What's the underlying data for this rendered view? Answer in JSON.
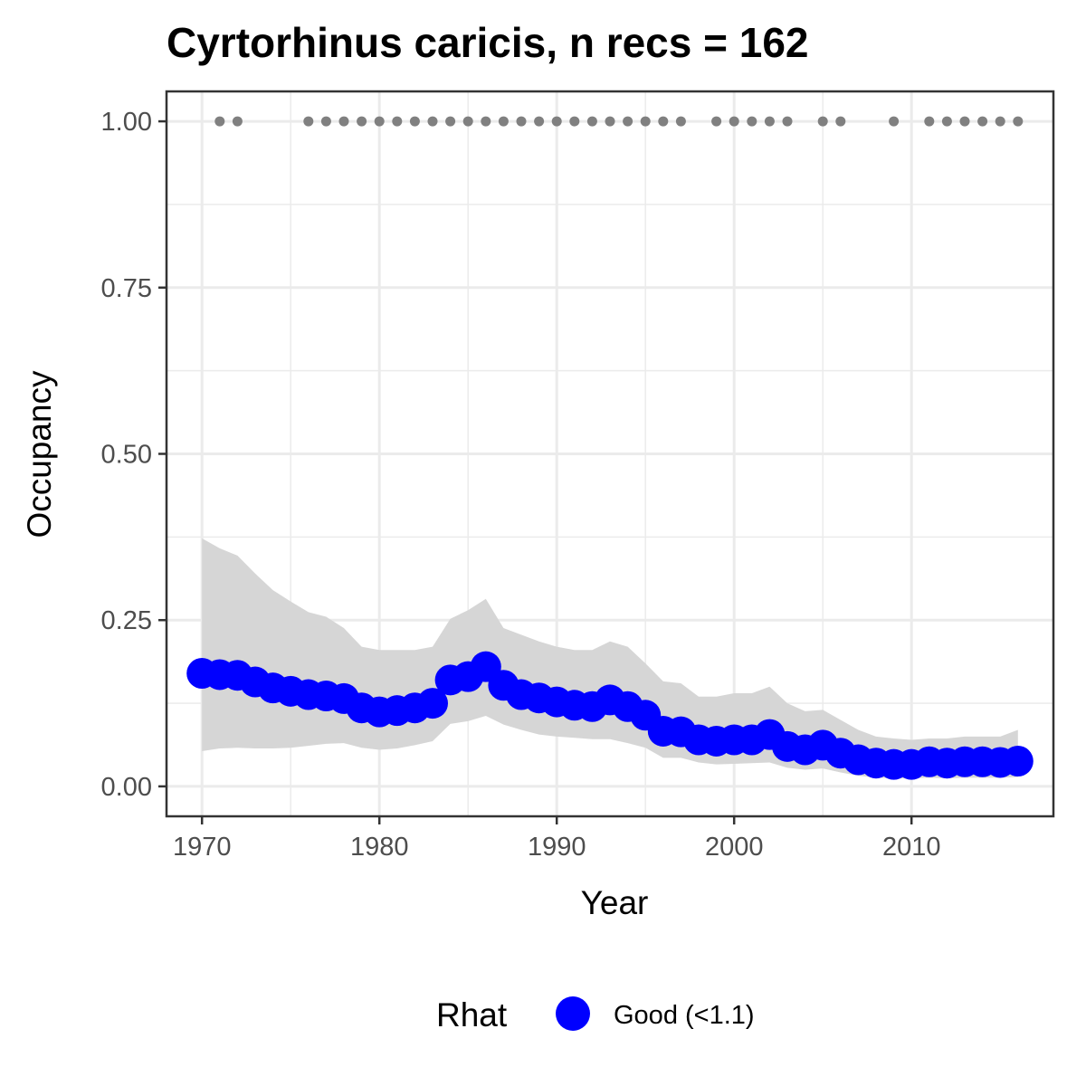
{
  "chart_data": {
    "type": "line",
    "title": "Cyrtorhinus caricis, n recs = 162",
    "xlabel": "Year",
    "ylabel": "Occupancy",
    "xlim": [
      1968,
      2018
    ],
    "ylim": [
      -0.045,
      1.045
    ],
    "x_ticks": [
      1970,
      1980,
      1990,
      2000,
      2010
    ],
    "x_tick_labels": [
      "1970",
      "1980",
      "1990",
      "2000",
      "2010"
    ],
    "y_ticks": [
      0,
      0.25,
      0.5,
      0.75,
      1
    ],
    "y_tick_labels": [
      "0.00",
      "0.25",
      "0.50",
      "0.75",
      "1.00"
    ],
    "grid": true,
    "legend_position": "bottom",
    "legend": {
      "title": "Rhat",
      "entries": [
        {
          "label": "Good (<1.1)",
          "color": "#0000ff"
        }
      ]
    },
    "colors": {
      "occupancy": "#0000ff",
      "ribbon": "#d6d6d6",
      "records": "#808080",
      "panel_border": "#333333",
      "grid": "#ebebeb"
    },
    "series": [
      {
        "name": "Good (<1.1)",
        "x": [
          1970,
          1971,
          1972,
          1973,
          1974,
          1975,
          1976,
          1977,
          1978,
          1979,
          1980,
          1981,
          1982,
          1983,
          1984,
          1985,
          1986,
          1987,
          1988,
          1989,
          1990,
          1991,
          1992,
          1993,
          1994,
          1995,
          1996,
          1997,
          1998,
          1999,
          2000,
          2001,
          2002,
          2003,
          2004,
          2005,
          2006,
          2007,
          2008,
          2009,
          2010,
          2011,
          2012,
          2013,
          2014,
          2015,
          2016
        ],
        "y": [
          0.17,
          0.168,
          0.167,
          0.157,
          0.148,
          0.143,
          0.138,
          0.136,
          0.132,
          0.118,
          0.112,
          0.114,
          0.118,
          0.125,
          0.16,
          0.165,
          0.18,
          0.152,
          0.138,
          0.133,
          0.127,
          0.122,
          0.12,
          0.13,
          0.12,
          0.107,
          0.083,
          0.082,
          0.07,
          0.068,
          0.07,
          0.07,
          0.078,
          0.06,
          0.055,
          0.062,
          0.05,
          0.04,
          0.035,
          0.033,
          0.033,
          0.037,
          0.035,
          0.037,
          0.037,
          0.036,
          0.038
        ],
        "lower": [
          0.053,
          0.057,
          0.058,
          0.057,
          0.057,
          0.058,
          0.061,
          0.064,
          0.065,
          0.058,
          0.055,
          0.057,
          0.062,
          0.068,
          0.094,
          0.098,
          0.106,
          0.093,
          0.085,
          0.078,
          0.075,
          0.073,
          0.071,
          0.071,
          0.065,
          0.058,
          0.043,
          0.043,
          0.036,
          0.033,
          0.034,
          0.035,
          0.036,
          0.028,
          0.025,
          0.027,
          0.021,
          0.016,
          0.013,
          0.012,
          0.012,
          0.013,
          0.012,
          0.013,
          0.013,
          0.013,
          0.014
        ]
      },
      {
        "name": "upper",
        "x": [
          1970,
          1971,
          1972,
          1973,
          1974,
          1975,
          1976,
          1977,
          1978,
          1979,
          1980,
          1981,
          1982,
          1983,
          1984,
          1985,
          1986,
          1987,
          1988,
          1989,
          1990,
          1991,
          1992,
          1993,
          1994,
          1995,
          1996,
          1997,
          1998,
          1999,
          2000,
          2001,
          2002,
          2003,
          2004,
          2005,
          2006,
          2007,
          2008,
          2009,
          2010,
          2011,
          2012,
          2013,
          2014,
          2015,
          2016
        ],
        "y": [
          0.373,
          0.358,
          0.347,
          0.32,
          0.295,
          0.278,
          0.262,
          0.255,
          0.238,
          0.21,
          0.205,
          0.205,
          0.205,
          0.21,
          0.252,
          0.265,
          0.282,
          0.238,
          0.228,
          0.218,
          0.21,
          0.205,
          0.205,
          0.218,
          0.21,
          0.185,
          0.158,
          0.155,
          0.135,
          0.135,
          0.14,
          0.14,
          0.15,
          0.125,
          0.113,
          0.115,
          0.1,
          0.085,
          0.075,
          0.072,
          0.07,
          0.072,
          0.072,
          0.075,
          0.075,
          0.075,
          0.085
        ]
      }
    ],
    "records": {
      "name": "records",
      "y": 1,
      "x": [
        1971,
        1972,
        1976,
        1977,
        1978,
        1979,
        1980,
        1981,
        1982,
        1983,
        1984,
        1985,
        1986,
        1987,
        1988,
        1989,
        1990,
        1991,
        1992,
        1993,
        1994,
        1995,
        1996,
        1997,
        1999,
        2000,
        2001,
        2002,
        2003,
        2005,
        2006,
        2009,
        2011,
        2012,
        2013,
        2014,
        2015,
        2016
      ]
    }
  }
}
